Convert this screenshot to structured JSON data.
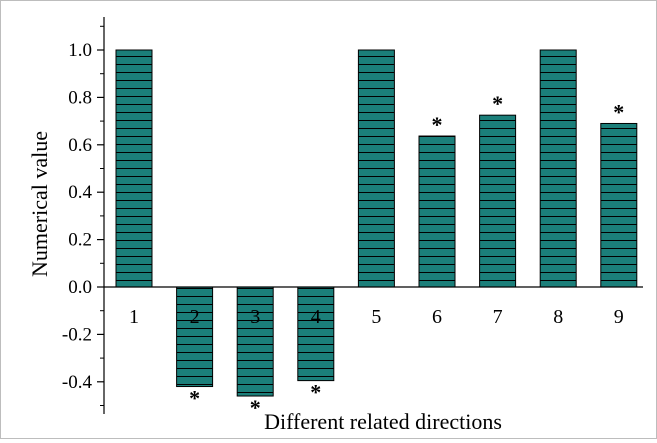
{
  "chart_data": {
    "type": "bar",
    "title": "",
    "xlabel": "Different related directions",
    "ylabel": "Numerical value",
    "categories": [
      "1",
      "2",
      "3",
      "4",
      "5",
      "6",
      "7",
      "8",
      "9"
    ],
    "values": [
      1.0,
      -0.42,
      -0.46,
      -0.395,
      1.0,
      0.637,
      0.725,
      1.0,
      0.69
    ],
    "significance": [
      "",
      "*",
      "*",
      "*",
      "",
      "*",
      "*",
      "",
      "*"
    ],
    "ylim": [
      -0.55,
      1.1
    ],
    "yticks": [
      "-0.4",
      "-0.2",
      "0.0",
      "0.2",
      "0.4",
      "0.6",
      "0.8",
      "1.0"
    ],
    "grid": false,
    "legend": "none",
    "colors": {
      "bar_fill": "#1b7f7a",
      "bar_stripe": "#000000",
      "axis": "#000000"
    }
  }
}
